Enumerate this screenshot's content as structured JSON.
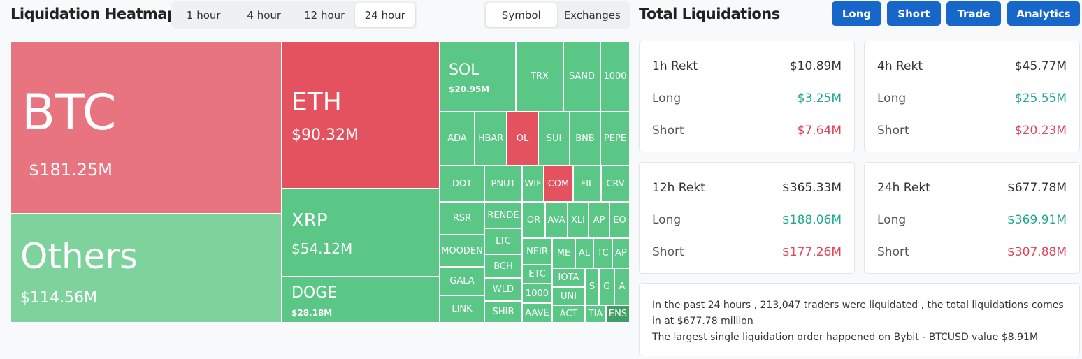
{
  "header": {
    "title": "Liquidation Heatmap",
    "timeframes": [
      "1 hour",
      "4 hour",
      "12 hour",
      "24 hour"
    ],
    "selected_timeframe": 3,
    "views": [
      "Symbol",
      "Exchanges"
    ],
    "selected_view": 0
  },
  "heatmap": {
    "tiles": [
      {
        "label": "BTC",
        "value": "$181.25M",
        "color": "#e8747f"
      },
      {
        "label": "Others",
        "value": "$114.56M",
        "color": "#7dd39b"
      },
      {
        "label": "ETH",
        "value": "$90.32M",
        "color": "#e5525f"
      },
      {
        "label": "XRP",
        "value": "$54.12M",
        "color": "#5bc787"
      },
      {
        "label": "DOGE",
        "value": "$28.18M",
        "color": "#5bc787"
      },
      {
        "label": "SOL",
        "value": "$20.95M",
        "color": "#5bc787"
      },
      {
        "label": "TRX",
        "color": "#5bc787"
      },
      {
        "label": "SAND",
        "color": "#5bc787"
      },
      {
        "label": "1000",
        "color": "#5bc787"
      },
      {
        "label": "ADA",
        "color": "#5bc787"
      },
      {
        "label": "HBAR",
        "color": "#5bc787"
      },
      {
        "label": "OL",
        "color": "#e5525f"
      },
      {
        "label": "SUI",
        "color": "#5bc787"
      },
      {
        "label": "BNB",
        "color": "#5bc787"
      },
      {
        "label": "PEPE",
        "color": "#5bc787"
      },
      {
        "label": "DOT",
        "color": "#5bc787"
      },
      {
        "label": "RSR",
        "color": "#5bc787"
      },
      {
        "label": "MOODEN",
        "color": "#5bc787"
      },
      {
        "label": "GALA",
        "color": "#5bc787"
      },
      {
        "label": "LINK",
        "color": "#5bc787"
      },
      {
        "label": "PNUT",
        "color": "#5bc787"
      },
      {
        "label": "WIF",
        "color": "#5bc787"
      },
      {
        "label": "COM",
        "color": "#e5525f"
      },
      {
        "label": "FIL",
        "color": "#5bc787"
      },
      {
        "label": "CRV",
        "color": "#5bc787"
      },
      {
        "label": "RENDE",
        "color": "#5bc787"
      },
      {
        "label": "LTC",
        "color": "#5bc787"
      },
      {
        "label": "BCH",
        "color": "#5bc787"
      },
      {
        "label": "WLD",
        "color": "#5bc787"
      },
      {
        "label": "SHIB",
        "color": "#5bc787"
      },
      {
        "label": "OR",
        "color": "#5bc787"
      },
      {
        "label": "AVA",
        "color": "#5bc787"
      },
      {
        "label": "XLI",
        "color": "#5bc787"
      },
      {
        "label": "AP",
        "color": "#5bc787"
      },
      {
        "label": "EO",
        "color": "#5bc787"
      },
      {
        "label": "NEIR",
        "color": "#5bc787"
      },
      {
        "label": "ETC",
        "color": "#5bc787"
      },
      {
        "label": "1000",
        "color": "#5bc787"
      },
      {
        "label": "AAVE",
        "color": "#5bc787"
      },
      {
        "label": "ME",
        "color": "#5bc787"
      },
      {
        "label": "AL",
        "color": "#5bc787"
      },
      {
        "label": "TC",
        "color": "#5bc787"
      },
      {
        "label": "AP",
        "color": "#5bc787"
      },
      {
        "label": "IOTA",
        "color": "#5bc787"
      },
      {
        "label": "UNI",
        "color": "#5bc787"
      },
      {
        "label": "ACT",
        "color": "#5bc787"
      },
      {
        "label": "S",
        "color": "#5bc787"
      },
      {
        "label": "G",
        "color": "#5bc787"
      },
      {
        "label": "A",
        "color": "#5bc787"
      },
      {
        "label": "TIA",
        "color": "#5bc787"
      },
      {
        "label": "ENS",
        "color": "#3e9e63"
      }
    ]
  },
  "summary": {
    "title": "Total Liquidations",
    "buttons": [
      "Long",
      "Short",
      "Trade",
      "Analytics"
    ],
    "cards": [
      {
        "title": "1h Rekt",
        "total": "$10.89M",
        "rows": [
          {
            "label": "Long",
            "value": "$3.25M"
          },
          {
            "label": "Short",
            "value": "$7.64M"
          }
        ]
      },
      {
        "title": "4h Rekt",
        "total": "$45.77M",
        "rows": [
          {
            "label": "Long",
            "value": "$25.55M"
          },
          {
            "label": "Short",
            "value": "$20.23M"
          }
        ]
      },
      {
        "title": "12h Rekt",
        "total": "$365.33M",
        "rows": [
          {
            "label": "Long",
            "value": "$188.06M"
          },
          {
            "label": "Short",
            "value": "$177.26M"
          }
        ]
      },
      {
        "title": "24h Rekt",
        "total": "$677.78M",
        "rows": [
          {
            "label": "Long",
            "value": "$369.91M"
          },
          {
            "label": "Short",
            "value": "$307.88M"
          }
        ]
      }
    ],
    "notes": [
      "In the past 24 hours , 213,047 traders were liquidated , the total liquidations comes in at $677.78 million",
      "The largest single liquidation order happened on Bybit - BTCUSD value $8.91M"
    ]
  }
}
